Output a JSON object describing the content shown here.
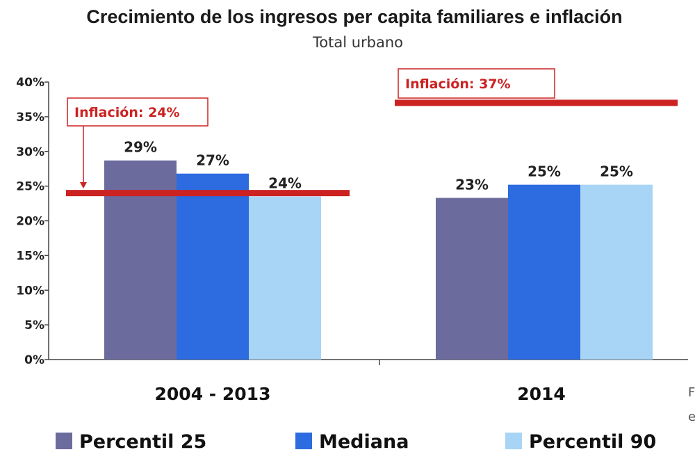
{
  "chart_data": {
    "type": "bar",
    "title": "Crecimiento de los ingresos per capita familiares e inflación",
    "subtitle": "Total urbano",
    "categories": [
      "2004 - 2013",
      "2014"
    ],
    "series": [
      {
        "name": "Percentil 25",
        "values": [
          28.7,
          23.3
        ],
        "labels": [
          "29%",
          "23%"
        ],
        "color": "#6b6b9e"
      },
      {
        "name": "Mediana",
        "values": [
          26.8,
          25.2
        ],
        "labels": [
          "27%",
          "25%"
        ],
        "color": "#2d6be0"
      },
      {
        "name": "Percentil 90",
        "values": [
          23.5,
          25.2
        ],
        "labels": [
          "24%",
          "25%"
        ],
        "color": "#a8d4f5"
      }
    ],
    "inflation": [
      {
        "category": "2004 - 2013",
        "value": 24,
        "label": "Inflación: 24%"
      },
      {
        "category": "2014",
        "value": 37,
        "label": "Inflación: 37%"
      }
    ],
    "ylim": [
      0,
      40
    ],
    "yticks": [
      0,
      5,
      10,
      15,
      20,
      25,
      30,
      35,
      40
    ],
    "ytick_labels": [
      "0%",
      "5%",
      "10%",
      "15%",
      "20%",
      "25%",
      "30%",
      "35%",
      "40%"
    ],
    "legend_position": "bottom",
    "grid": false,
    "inflation_color": "#cc2222",
    "source_fragment": [
      "F",
      "e"
    ]
  }
}
